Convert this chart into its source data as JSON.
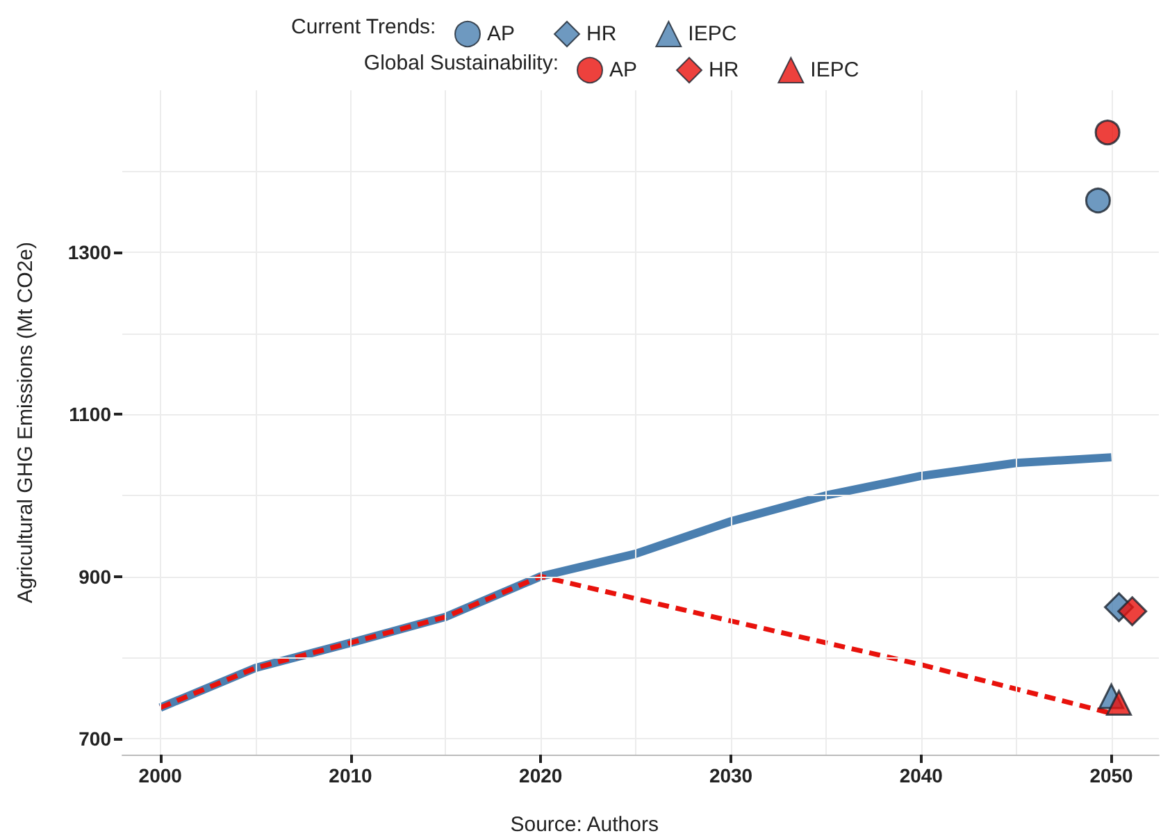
{
  "chart_data": {
    "type": "line",
    "ylabel": "Agricultural GHG Emissions (Mt CO2e)",
    "legend_title": [
      "Current Trends:",
      "Global Sustainability:"
    ],
    "annotations": [
      "Source: Authors"
    ],
    "xlim": [
      1998,
      2052.5
    ],
    "ylim": [
      680,
      1500
    ],
    "xticks": [
      2000,
      {
        "value": 2005,
        "label": null
      },
      2010,
      {
        "value": 2015,
        "label": null
      },
      2020,
      {
        "value": 2025,
        "label": null
      },
      2030,
      {
        "value": 2035,
        "label": null
      },
      2040,
      {
        "value": 2045,
        "label": null
      },
      2050
    ],
    "yticks": [
      700,
      {
        "value": 800,
        "label": null
      },
      900,
      {
        "value": 1000,
        "label": null
      },
      1100,
      {
        "value": 1200,
        "label": null
      },
      1300,
      {
        "value": 1400,
        "label": null
      }
    ],
    "grid": true,
    "legend": "top",
    "series": [
      {
        "color": "#4a7fb0",
        "line_style": "solid",
        "marker": "none",
        "x": [
          2000,
          2005,
          2010,
          2015,
          2020,
          2025,
          2030,
          2035,
          2040,
          2045,
          2050
        ],
        "values": [
          738,
          787,
          818,
          850,
          900,
          928,
          968,
          1000,
          1024,
          1040,
          1047
        ]
      },
      {
        "color": "#e8120c",
        "line_style": "dashed",
        "marker": "none",
        "x": [
          2000,
          2005,
          2010,
          2015,
          2020,
          2030,
          2040,
          2050
        ],
        "values": [
          738,
          787,
          818,
          850,
          900,
          845,
          791,
          731
        ]
      },
      {
        "type": "scatter",
        "name": "AP",
        "color": "#4a7fb0",
        "marker": "circle",
        "x": [
          2049.3
        ],
        "values": [
          1364
        ]
      },
      {
        "type": "scatter",
        "name": "HR",
        "color": "#4a7fb0",
        "marker": "diamond",
        "x": [
          2050.4
        ],
        "values": [
          862
        ]
      },
      {
        "type": "scatter",
        "name": "IEPC",
        "color": "#4a7fb0",
        "marker": "triangle",
        "x": [
          2050
        ],
        "values": [
          752
        ]
      },
      {
        "type": "scatter",
        "name": "AP",
        "color": "#e8120c",
        "marker": "circle",
        "x": [
          2049.8
        ],
        "values": [
          1448
        ]
      },
      {
        "type": "scatter",
        "name": "HR",
        "color": "#e8120c",
        "marker": "diamond",
        "x": [
          2051.1
        ],
        "values": [
          857
        ]
      },
      {
        "type": "scatter",
        "name": "IEPC",
        "color": "#e8120c",
        "marker": "triangle",
        "x": [
          2050.4
        ],
        "values": [
          744
        ]
      }
    ]
  }
}
